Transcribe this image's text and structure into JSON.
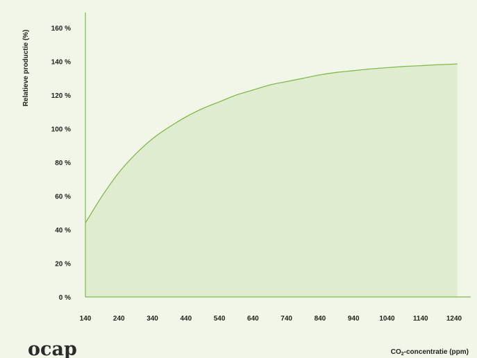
{
  "chart_data": {
    "type": "area",
    "ylabel": "Relatieve productie (%)",
    "xlabel_main": "CO",
    "xlabel_sub": "2",
    "xlabel_rest": "-concentratie (ppm)",
    "x_ticks": [
      140,
      240,
      340,
      440,
      540,
      640,
      740,
      840,
      940,
      1040,
      1140,
      1240
    ],
    "y_ticks": [
      0,
      20,
      40,
      60,
      80,
      100,
      120,
      140,
      160
    ],
    "y_tick_labels": [
      "0 %",
      "20 %",
      "40 %",
      "60 %",
      "80 %",
      "100 %",
      "120 %",
      "140 %",
      "160 %"
    ],
    "xlim": [
      140,
      1250
    ],
    "ylim": [
      0,
      160
    ],
    "series": [
      {
        "x": [
          140,
          190,
          240,
          290,
          340,
          390,
          440,
          490,
          540,
          590,
          640,
          690,
          740,
          790,
          840,
          890,
          940,
          990,
          1040,
          1090,
          1140,
          1190,
          1240,
          1250
        ],
        "values": [
          44,
          60,
          74,
          85,
          94,
          101,
          107,
          112,
          116,
          120,
          123,
          126,
          128,
          130,
          132,
          133.5,
          134.5,
          135.5,
          136.3,
          137,
          137.5,
          138,
          138.4,
          138.5
        ]
      }
    ],
    "colors": {
      "line": "#7fba4a",
      "fill": "#e0ecd0",
      "axis": "#7fba4a"
    },
    "grid": false,
    "legend": "none"
  },
  "logo": {
    "text": "ocap"
  }
}
